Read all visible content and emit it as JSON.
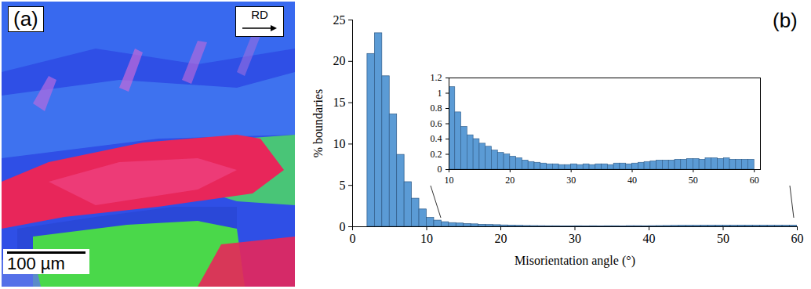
{
  "image_panel": {
    "label": "(a)",
    "direction_label": "RD",
    "scale_bar": "100 µm"
  },
  "chart_data": [
    {
      "type": "histogram",
      "annotations": [
        "(b)"
      ],
      "x_label": "Misorientation angle (°)",
      "y_label": "% boundaries",
      "bins": [
        2,
        3,
        4,
        5,
        6,
        7,
        8,
        9,
        10,
        11,
        12,
        13,
        14,
        15,
        16,
        17,
        18,
        19,
        20,
        21,
        22,
        23,
        24,
        25,
        26,
        27,
        28,
        29,
        30,
        31,
        32,
        33,
        34,
        35,
        36,
        37,
        38,
        39,
        40,
        41,
        42,
        43,
        44,
        45,
        46,
        47,
        48,
        49,
        50,
        51,
        52,
        53,
        54,
        55,
        56,
        57,
        58,
        59,
        60
      ],
      "values": [
        20.9,
        23.4,
        18.2,
        13.6,
        8.7,
        5.4,
        3.4,
        2.1,
        1.08,
        0.75,
        0.56,
        0.45,
        0.4,
        0.34,
        0.3,
        0.25,
        0.22,
        0.2,
        0.17,
        0.15,
        0.12,
        0.1,
        0.09,
        0.08,
        0.07,
        0.07,
        0.06,
        0.06,
        0.07,
        0.06,
        0.07,
        0.06,
        0.07,
        0.07,
        0.06,
        0.08,
        0.08,
        0.07,
        0.08,
        0.09,
        0.1,
        0.11,
        0.12,
        0.12,
        0.12,
        0.13,
        0.13,
        0.14,
        0.14,
        0.13,
        0.15,
        0.15,
        0.14,
        0.15,
        0.13,
        0.13,
        0.13,
        0.13
      ],
      "color": "#5b9bd5",
      "xlim": [
        0,
        60
      ],
      "xticks": [
        0,
        10,
        20,
        30,
        40,
        50,
        60
      ],
      "ylim": [
        0,
        25
      ],
      "yticks": [
        0,
        5,
        10,
        15,
        20,
        25
      ]
    },
    {
      "type": "histogram",
      "bins": [
        10,
        11,
        12,
        13,
        14,
        15,
        16,
        17,
        18,
        19,
        20,
        21,
        22,
        23,
        24,
        25,
        26,
        27,
        28,
        29,
        30,
        31,
        32,
        33,
        34,
        35,
        36,
        37,
        38,
        39,
        40,
        41,
        42,
        43,
        44,
        45,
        46,
        47,
        48,
        49,
        50,
        51,
        52,
        53,
        54,
        55,
        56,
        57,
        58,
        59,
        60
      ],
      "values": [
        1.08,
        0.75,
        0.56,
        0.45,
        0.4,
        0.34,
        0.3,
        0.25,
        0.22,
        0.2,
        0.17,
        0.15,
        0.12,
        0.1,
        0.09,
        0.08,
        0.07,
        0.07,
        0.06,
        0.06,
        0.07,
        0.06,
        0.07,
        0.06,
        0.07,
        0.07,
        0.06,
        0.08,
        0.08,
        0.07,
        0.08,
        0.09,
        0.1,
        0.11,
        0.12,
        0.12,
        0.12,
        0.13,
        0.13,
        0.14,
        0.14,
        0.13,
        0.15,
        0.15,
        0.14,
        0.15,
        0.13,
        0.13,
        0.13,
        0.13
      ],
      "color": "#5b9bd5",
      "xlim": [
        10,
        61
      ],
      "xticks": [
        10,
        20,
        30,
        40,
        50,
        60
      ],
      "ylim": [
        0,
        1.2
      ],
      "yticks": [
        0,
        0.2,
        0.4,
        0.6,
        0.8,
        1,
        1.2
      ]
    }
  ]
}
